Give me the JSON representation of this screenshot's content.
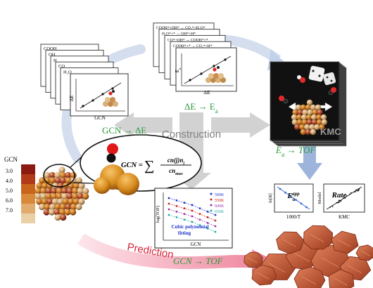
{
  "stage_labels": {
    "gcn_to_de": "GCN → ΔE",
    "de_to_ea": "ΔE → E",
    "ea_sub": "a",
    "ea_to_tof": "E",
    "ea_to_tof_sub": "a",
    "ea_to_tof_rest": " → TOF",
    "gcn_to_tof": "GCN → TOF",
    "construction": "Construction",
    "prediction": "Prediction",
    "kmc": "KMC"
  },
  "panel_1": {
    "cards": [
      "COOH",
      "OH",
      "H",
      "CO",
      "H₂O"
    ],
    "xlabel": "GCN",
    "ylabel": "ΔE"
  },
  "panel_2": {
    "cards": [
      "COOH*+OH* → CO₂*+H₂O*",
      "H₂O*+* → OH*+H*",
      "CO*+OH* → COOH*+*",
      "COOH*+* → CO₂*+H*"
    ],
    "xlabel": "ΔE",
    "ylabel": "E",
    "ylabel_sub": "a"
  },
  "gcn_scale": {
    "title": "GCN",
    "ticks": [
      "3.0",
      "4.0",
      "5.0",
      "6.0",
      "7.0"
    ],
    "colors": [
      "#8b1a12",
      "#b03a1a",
      "#c9641d",
      "#d9893a",
      "#e2ac6e",
      "#ead0a6"
    ]
  },
  "formula": {
    "lhs": "GCN =",
    "num": "cn(j)n",
    "num_sub": "j",
    "den": "cn",
    "den_sub": "max",
    "sum": "∑"
  },
  "mini_plot_1": {
    "ylabel": "ln[R]",
    "xlabel": "1000/T",
    "title": "E",
    "title_sub": "a",
    "title_sup": "app"
  },
  "mini_plot_2": {
    "ylabel": "Model",
    "xlabel": "KMC",
    "title": "Rate"
  },
  "tof_plot": {
    "ylabel": "log(TOF)",
    "xlabel": "GCN",
    "fit_label_1": "Cubic polynomial",
    "fit_label_2": "fitting",
    "legend": [
      {
        "name": "500K",
        "color": "#2233cc"
      },
      {
        "name": "550K",
        "color": "#cc2222"
      },
      {
        "name": "600K",
        "color": "#9933aa"
      },
      {
        "name": "650K",
        "color": "#22aaaa"
      }
    ]
  },
  "colors": {
    "arrow_blue": "#b8c8e6",
    "arrow_gray": "#cfcfcf",
    "arrow_pink": "#f0a8b8",
    "green_label": "#2a9a3a",
    "prediction_red": "#d6243c",
    "kmc_dark": "#1a1a1a",
    "copper": "#c8603a"
  }
}
